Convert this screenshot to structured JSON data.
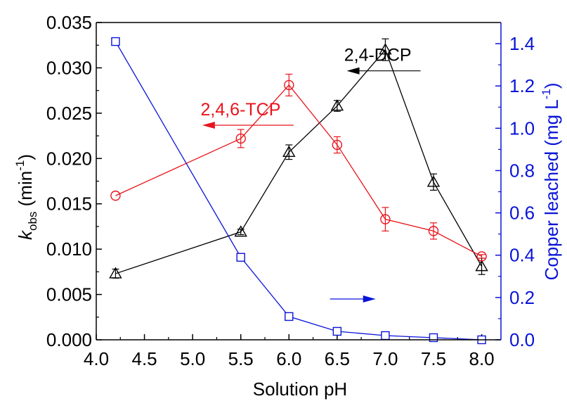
{
  "chart_data": {
    "type": "line",
    "xlabel": "Solution pH",
    "xlim": [
      4.0,
      8.2
    ],
    "x_ticks": [
      "4.0",
      "4.5",
      "5.0",
      "5.5",
      "6.0",
      "6.5",
      "7.0",
      "7.5",
      "8.0"
    ],
    "x_tick_values": [
      4.0,
      4.5,
      5.0,
      5.5,
      6.0,
      6.5,
      7.0,
      7.5,
      8.0
    ],
    "ylabel_left": {
      "main": "k",
      "sub": "obs",
      "unit": " (min",
      "sup": "-1",
      "close": ")"
    },
    "ylim_left": [
      0,
      0.035
    ],
    "y_ticks_left": [
      "0.000",
      "0.005",
      "0.010",
      "0.015",
      "0.020",
      "0.025",
      "0.030",
      "0.035"
    ],
    "y_tick_values_left": [
      0,
      0.005,
      0.01,
      0.015,
      0.02,
      0.025,
      0.03,
      0.035
    ],
    "ylabel_right": {
      "main": "Copper leached (mg L",
      "sup": "-1",
      "close": ")"
    },
    "ylim_right": [
      0,
      1.5
    ],
    "y_ticks_right": [
      "0.0",
      "0.2",
      "0.4",
      "0.6",
      "0.8",
      "1.0",
      "1.2",
      "1.4"
    ],
    "y_tick_values_right": [
      0,
      0.2,
      0.4,
      0.6,
      0.8,
      1.0,
      1.2,
      1.4
    ],
    "series": [
      {
        "name": "2,4-DCP",
        "axis": "left",
        "marker": "triangle",
        "color": "#000000",
        "x": [
          4.2,
          5.5,
          6.0,
          6.5,
          7.0,
          7.5,
          8.0
        ],
        "y": [
          0.0073,
          0.0119,
          0.0207,
          0.0258,
          0.032,
          0.0174,
          0.0081
        ],
        "err": [
          0.0005,
          0.0003,
          0.0008,
          0.0006,
          0.0012,
          0.0009,
          0.0009
        ]
      },
      {
        "name": "2,4,6-TCP",
        "axis": "left",
        "marker": "circle",
        "color": "#e8141c",
        "x": [
          4.2,
          5.5,
          6.0,
          6.5,
          7.0,
          7.5,
          8.0
        ],
        "y": [
          0.0159,
          0.0222,
          0.0281,
          0.0215,
          0.0133,
          0.012,
          0.0092
        ],
        "err": [
          0.0,
          0.001,
          0.0012,
          0.0009,
          0.0013,
          0.0009,
          0.0002
        ]
      },
      {
        "axis": "right",
        "marker": "square",
        "color": "#0a14d6",
        "x": [
          4.2,
          5.5,
          6.0,
          6.5,
          7.0,
          7.5,
          8.0
        ],
        "y": [
          1.41,
          0.39,
          0.11,
          0.04,
          0.02,
          0.01,
          0.0
        ],
        "err": [
          0,
          0,
          0,
          0,
          0,
          0,
          0
        ]
      }
    ],
    "annotations": [
      {
        "text": "2,4-DCP",
        "color": "#000000",
        "arrow": "left",
        "x": 6.6,
        "y": 0.0306
      },
      {
        "text": "2,4,6-TCP",
        "color": "#e8141c",
        "arrow": "left",
        "x": 5.1,
        "y": 0.0246
      },
      {
        "text": "",
        "color": "#0a14d6",
        "arrow": "right",
        "x": 6.9,
        "y": 0.0045
      }
    ]
  }
}
